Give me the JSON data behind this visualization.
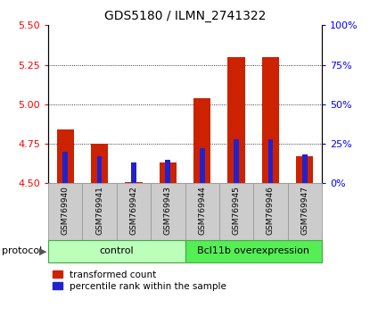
{
  "title": "GDS5180 / ILMN_2741322",
  "samples": [
    "GSM769940",
    "GSM769941",
    "GSM769942",
    "GSM769943",
    "GSM769944",
    "GSM769945",
    "GSM769946",
    "GSM769947"
  ],
  "red_values": [
    4.84,
    4.75,
    4.51,
    4.63,
    5.04,
    5.3,
    5.3,
    4.67
  ],
  "blue_values": [
    20,
    17,
    13,
    15,
    22,
    28,
    28,
    18
  ],
  "ylim_left": [
    4.5,
    5.5
  ],
  "ylim_right": [
    0,
    100
  ],
  "yticks_left": [
    4.5,
    4.75,
    5.0,
    5.25,
    5.5
  ],
  "yticks_right": [
    0,
    25,
    50,
    75,
    100
  ],
  "ytick_labels_right": [
    "0%",
    "25%",
    "50%",
    "75%",
    "100%"
  ],
  "red_bar_width": 0.5,
  "blue_bar_width": 0.15,
  "red_color": "#cc2200",
  "blue_color": "#2222cc",
  "control_color": "#bbffbb",
  "overexp_color": "#55ee55",
  "gray_color": "#cccccc",
  "gray_edge_color": "#999999",
  "control_label": "control",
  "overexp_label": "Bcl11b overexpression",
  "protocol_label": "protocol",
  "legend_red": "transformed count",
  "legend_blue": "percentile rank within the sample",
  "baseline": 4.5,
  "gridline_vals": [
    4.75,
    5.0,
    5.25
  ]
}
